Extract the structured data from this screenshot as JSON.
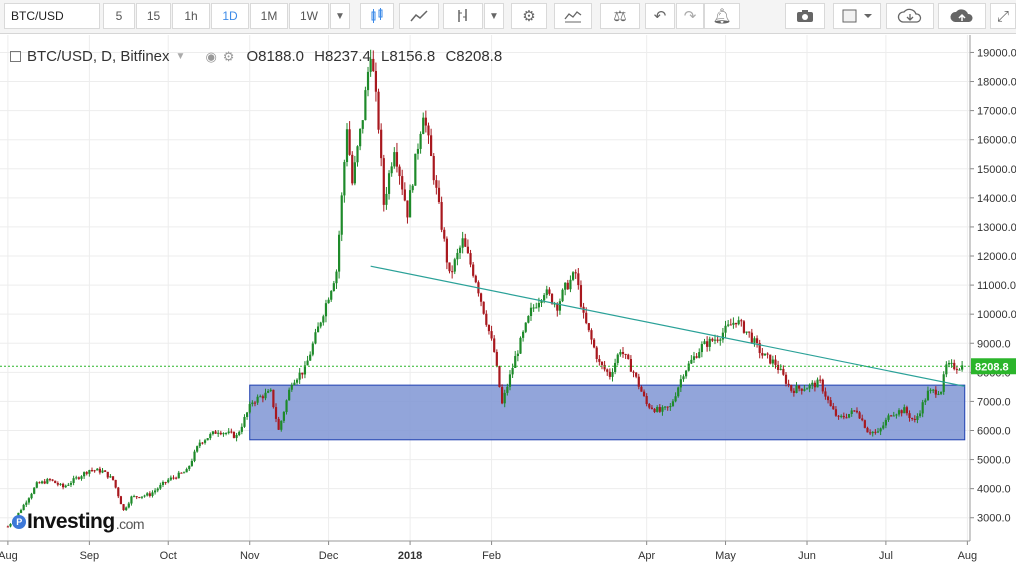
{
  "toolbar": {
    "symbol": "BTC/USD",
    "intervals": [
      "5",
      "15",
      "1h",
      "1D",
      "1M",
      "1W"
    ],
    "active_interval": "1D",
    "icons": [
      "candles-icon",
      "area-chart-icon",
      "bar-chart-icon",
      "chevron-down-icon",
      "gear-icon",
      "indicators-icon",
      "compare-icon",
      "undo-icon",
      "redo-icon",
      "alert-icon",
      "camera-icon",
      "square-icon",
      "cloud-download-icon",
      "cloud-upload-icon",
      "fullscreen-icon"
    ]
  },
  "legend": {
    "title": "BTC/USD, D, Bitfinex",
    "open": "O8188.0",
    "high": "H8237.4",
    "low": "L8156.8",
    "close": "C8208.8"
  },
  "logo": {
    "name": "Investing",
    "suffix": ".com"
  },
  "colors": {
    "up": "#1e8a2a",
    "down": "#a8181e",
    "zone": "#7f95d4",
    "trend": "#2aa198",
    "price_line": "#2bb52b"
  },
  "chart_data": {
    "type": "candlestick",
    "title": "",
    "x_ticks": [
      "Aug",
      "Sep",
      "Oct",
      "Nov",
      "Dec",
      "2018",
      "Feb",
      "Apr",
      "May",
      "Jun",
      "Jul",
      "Aug"
    ],
    "y_ticks": [
      "3000.0",
      "4000.0",
      "5000.0",
      "6000.0",
      "7000.0",
      "8000.0",
      "9000.0",
      "10000.0",
      "11000.0",
      "12000.0",
      "13000.0",
      "14000.0",
      "15000.0",
      "16000.0",
      "17000.0",
      "18000.0",
      "19000.0"
    ],
    "ylim": [
      2200,
      19600
    ],
    "xlim": [
      "2017-07-29",
      "2018-08-02"
    ],
    "last_price": 8208.8,
    "last_price_label": "8208.8",
    "support_zone": {
      "from": "2017-11-01",
      "to": "2018-07-31",
      "low": 5680,
      "high": 7560
    },
    "trendline": {
      "from": [
        "2017-12-17",
        11650
      ],
      "to": [
        "2018-07-31",
        7520
      ]
    },
    "path": [
      [
        "2017-08-01",
        2700
      ],
      [
        "2017-08-05",
        3150
      ],
      [
        "2017-08-12",
        4150
      ],
      [
        "2017-08-17",
        4300
      ],
      [
        "2017-08-22",
        4050
      ],
      [
        "2017-09-01",
        4650
      ],
      [
        "2017-09-06",
        4600
      ],
      [
        "2017-09-10",
        4300
      ],
      [
        "2017-09-14",
        3250
      ],
      [
        "2017-09-17",
        3700
      ],
      [
        "2017-09-24",
        3800
      ],
      [
        "2017-10-01",
        4300
      ],
      [
        "2017-10-08",
        4600
      ],
      [
        "2017-10-13",
        5600
      ],
      [
        "2017-10-20",
        6000
      ],
      [
        "2017-10-27",
        5800
      ],
      [
        "2017-11-02",
        7000
      ],
      [
        "2017-11-06",
        7200
      ],
      [
        "2017-11-09",
        7300
      ],
      [
        "2017-11-12",
        6000
      ],
      [
        "2017-11-17",
        7700
      ],
      [
        "2017-11-22",
        8100
      ],
      [
        "2017-11-28",
        9800
      ],
      [
        "2017-12-04",
        11500
      ],
      [
        "2017-12-08",
        16500
      ],
      [
        "2017-12-10",
        14500
      ],
      [
        "2017-12-14",
        16800
      ],
      [
        "2017-12-17",
        19100
      ],
      [
        "2017-12-20",
        16500
      ],
      [
        "2017-12-22",
        13800
      ],
      [
        "2017-12-26",
        15800
      ],
      [
        "2017-12-31",
        13500
      ],
      [
        "2018-01-06",
        17000
      ],
      [
        "2018-01-10",
        14800
      ],
      [
        "2018-01-16",
        11300
      ],
      [
        "2018-01-21",
        12500
      ],
      [
        "2018-01-26",
        11200
      ],
      [
        "2018-02-02",
        8700
      ],
      [
        "2018-02-05",
        6900
      ],
      [
        "2018-02-10",
        8500
      ],
      [
        "2018-02-16",
        10100
      ],
      [
        "2018-02-21",
        10800
      ],
      [
        "2018-02-26",
        10300
      ],
      [
        "2018-03-01",
        10900
      ],
      [
        "2018-03-05",
        11400
      ],
      [
        "2018-03-08",
        9900
      ],
      [
        "2018-03-14",
        8300
      ],
      [
        "2018-03-18",
        7900
      ],
      [
        "2018-03-22",
        8800
      ],
      [
        "2018-03-27",
        8000
      ],
      [
        "2018-04-01",
        6900
      ],
      [
        "2018-04-06",
        6650
      ],
      [
        "2018-04-10",
        6800
      ],
      [
        "2018-04-15",
        8000
      ],
      [
        "2018-04-22",
        8900
      ],
      [
        "2018-04-28",
        9200
      ],
      [
        "2018-05-05",
        9800
      ],
      [
        "2018-05-10",
        9300
      ],
      [
        "2018-05-15",
        8600
      ],
      [
        "2018-05-20",
        8300
      ],
      [
        "2018-05-26",
        7400
      ],
      [
        "2018-06-01",
        7500
      ],
      [
        "2018-06-06",
        7650
      ],
      [
        "2018-06-10",
        6800
      ],
      [
        "2018-06-13",
        6400
      ],
      [
        "2018-06-20",
        6700
      ],
      [
        "2018-06-24",
        6000
      ],
      [
        "2018-06-28",
        5900
      ],
      [
        "2018-07-03",
        6600
      ],
      [
        "2018-07-08",
        6700
      ],
      [
        "2018-07-12",
        6300
      ],
      [
        "2018-07-17",
        7300
      ],
      [
        "2018-07-22",
        7400
      ],
      [
        "2018-07-24",
        8200
      ],
      [
        "2018-07-27",
        8200
      ],
      [
        "2018-07-30",
        8208
      ]
    ]
  }
}
